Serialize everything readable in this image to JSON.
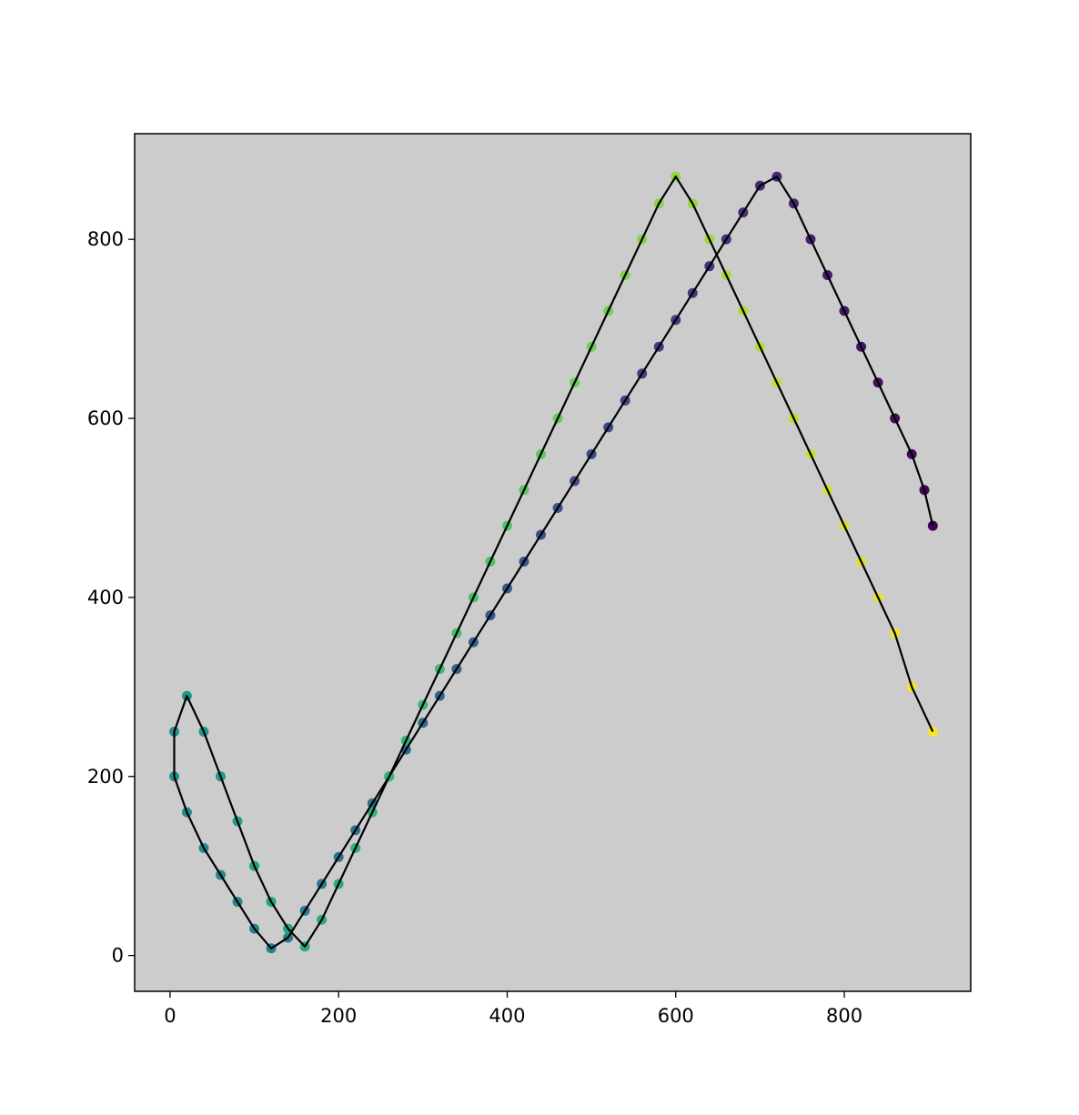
{
  "chart_data": {
    "type": "scatter",
    "title": "",
    "xlabel": "",
    "ylabel": "",
    "xlim": [
      -42,
      950
    ],
    "ylim": [
      -40,
      918
    ],
    "x_ticks": [
      0,
      200,
      400,
      600,
      800
    ],
    "y_ticks": [
      0,
      200,
      400,
      600,
      800
    ],
    "x_tick_labels": [
      "0",
      "200",
      "400",
      "600",
      "800"
    ],
    "y_tick_labels": [
      "0",
      "200",
      "400",
      "600",
      "800"
    ],
    "background_color": "#cccccc",
    "path_color": "#000000",
    "colormap": "viridis",
    "grid": false,
    "legend": "none",
    "description_of_data": "Space-filling tour: grid of city points colored by visit order, connected by a continuous black route line.",
    "x": [
      905,
      895,
      880,
      860,
      840,
      820,
      800,
      780,
      760,
      740,
      720,
      700,
      680,
      660,
      640,
      620,
      600,
      580,
      560,
      540,
      520,
      500,
      480,
      460,
      440,
      420,
      400,
      380,
      360,
      340,
      320,
      300,
      280,
      260,
      240,
      220,
      200,
      180,
      160,
      140,
      120,
      100,
      80,
      60,
      40,
      20,
      5,
      5,
      20,
      40,
      60,
      80,
      100,
      120,
      140,
      160,
      180,
      200,
      220,
      240,
      260,
      280,
      300,
      320,
      340,
      360,
      380,
      400,
      420,
      440,
      460,
      480,
      500,
      520,
      540,
      560,
      580,
      600,
      620,
      640,
      660,
      680,
      700,
      720,
      740,
      760,
      780,
      800,
      820,
      840,
      860,
      880,
      905
    ],
    "y": [
      480,
      520,
      560,
      600,
      640,
      680,
      720,
      760,
      800,
      840,
      870,
      860,
      830,
      800,
      770,
      740,
      710,
      680,
      650,
      620,
      590,
      560,
      530,
      500,
      470,
      440,
      410,
      380,
      350,
      320,
      290,
      260,
      230,
      200,
      170,
      140,
      110,
      80,
      50,
      20,
      8,
      30,
      60,
      90,
      120,
      160,
      200,
      250,
      290,
      250,
      200,
      150,
      100,
      60,
      30,
      10,
      40,
      80,
      120,
      160,
      200,
      240,
      280,
      320,
      360,
      400,
      440,
      480,
      520,
      560,
      600,
      640,
      680,
      720,
      760,
      800,
      840,
      870,
      840,
      800,
      760,
      720,
      680,
      640,
      600,
      560,
      520,
      480,
      440,
      400,
      360,
      300,
      250
    ]
  }
}
